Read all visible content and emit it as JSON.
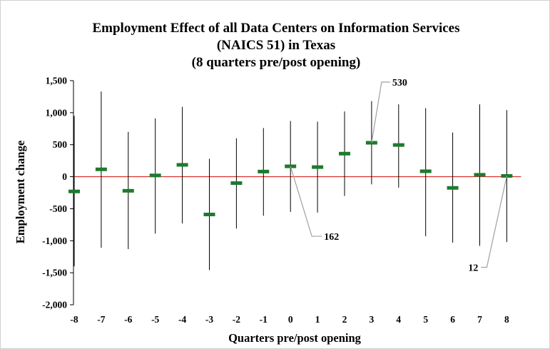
{
  "chart_data": {
    "type": "scatter",
    "title_lines": [
      "Employment Effect of all Data Centers on Information Services",
      "(NAICS 51) in Texas",
      "(8 quarters pre/post opening)"
    ],
    "xlabel": "Quarters pre/post opening",
    "ylabel": "Employment change",
    "ylim": [
      -2000,
      1500
    ],
    "ytick_values": [
      1500,
      1000,
      500,
      0,
      -500,
      -1000,
      -1500,
      -2000
    ],
    "ytick_labels": [
      "1,500",
      "1,000",
      "500",
      "0",
      "-500",
      "-1,000",
      "-1,500",
      "-2,000"
    ],
    "categories": [
      "-8",
      "-7",
      "-6",
      "-5",
      "-4",
      "-3",
      "-2",
      "-1",
      "0",
      "1",
      "2",
      "3",
      "4",
      "5",
      "6",
      "7",
      "8"
    ],
    "series": [
      {
        "name": "Point estimate",
        "values": [
          -230,
          115,
          -220,
          20,
          185,
          -590,
          -100,
          80,
          162,
          150,
          360,
          530,
          495,
          85,
          -175,
          30,
          12
        ]
      },
      {
        "name": "Confidence interval lower",
        "values": [
          -1400,
          -1110,
          -1130,
          -890,
          -730,
          -1460,
          -810,
          -610,
          -550,
          -560,
          -300,
          -120,
          -170,
          -930,
          -1030,
          -1080,
          -1020
        ]
      },
      {
        "name": "Confidence interval upper",
        "values": [
          950,
          1330,
          700,
          910,
          1090,
          280,
          600,
          760,
          870,
          860,
          1020,
          1180,
          1130,
          1070,
          690,
          1130,
          1040
        ]
      }
    ],
    "zero_line": true,
    "grid": false,
    "legend": "none",
    "annotations": [
      {
        "text": "162",
        "category": "0",
        "value": 162
      },
      {
        "text": "530",
        "category": "3",
        "value": 530
      },
      {
        "text": "12",
        "category": "8",
        "value": 12
      }
    ],
    "colors": {
      "marker": "#1e7a2e",
      "ci_line": "#000000",
      "zero_line": "#d9281e",
      "axis": "#000000",
      "leader": "#a0a0a0"
    }
  }
}
